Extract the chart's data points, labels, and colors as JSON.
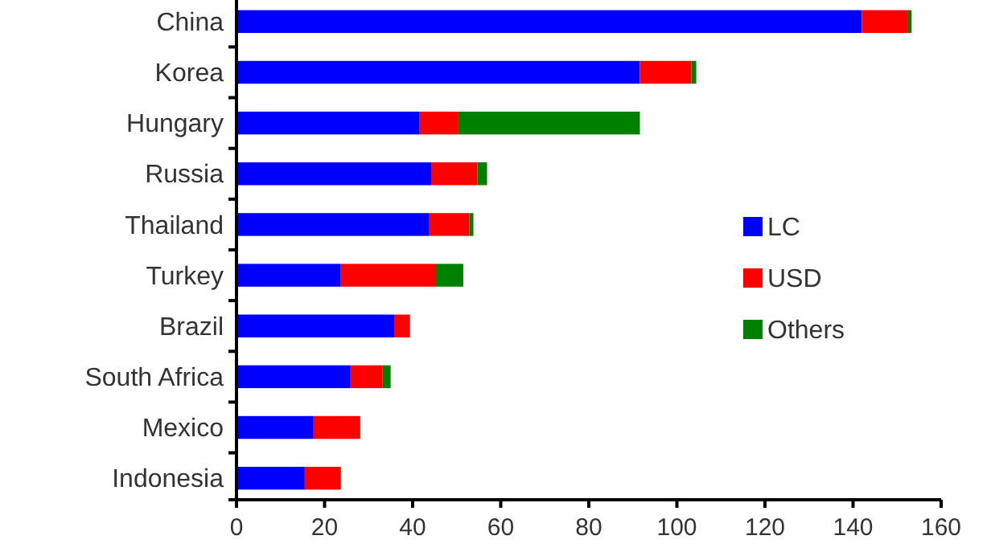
{
  "chart_data": {
    "type": "bar",
    "orientation": "horizontal",
    "stacked": true,
    "categories": [
      "China",
      "Korea",
      "Hungary",
      "Russia",
      "Thailand",
      "Turkey",
      "Brazil",
      "South Africa",
      "Mexico",
      "Indonesia"
    ],
    "series": [
      {
        "name": "LC",
        "color": "#0000ff",
        "values": [
          142,
          91.6,
          41.6,
          44.2,
          43.8,
          23.7,
          35.8,
          25.9,
          17.5,
          15.5
        ]
      },
      {
        "name": "USD",
        "color": "#ff0000",
        "values": [
          10.5,
          11.7,
          8.8,
          10.5,
          9.1,
          21.6,
          3.6,
          7.3,
          10.6,
          8.2
        ]
      },
      {
        "name": "Others",
        "color": "#008000",
        "values": [
          0.8,
          1.1,
          41.2,
          2.2,
          0.9,
          6.2,
          0,
          1.8,
          0,
          0
        ]
      }
    ],
    "xlim": [
      0,
      160
    ],
    "xticks": [
      0,
      20,
      40,
      60,
      80,
      100,
      120,
      140,
      160
    ],
    "grid": false,
    "legend": "right"
  }
}
